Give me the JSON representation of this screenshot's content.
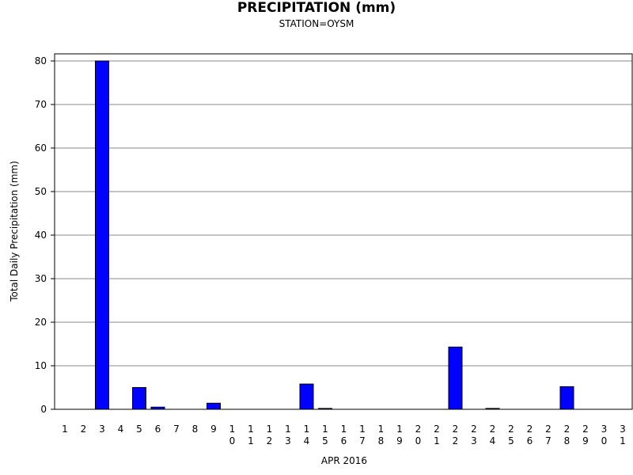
{
  "chart_data": {
    "type": "bar",
    "title": "PRECIPITATION (mm)",
    "subtitle": "STATION=OYSM",
    "xlabel": "APR 2016",
    "ylabel": "Total Daily Precipitation (mm)",
    "ylim": [
      0,
      80
    ],
    "yticks": [
      0,
      10,
      20,
      30,
      40,
      50,
      60,
      70,
      80
    ],
    "grid": true,
    "bar_color": "#0000ff",
    "categories": [
      "1",
      "2",
      "3",
      "4",
      "5",
      "6",
      "7",
      "8",
      "9",
      "10",
      "11",
      "12",
      "13",
      "14",
      "15",
      "16",
      "17",
      "18",
      "19",
      "20",
      "21",
      "22",
      "23",
      "24",
      "25",
      "26",
      "27",
      "28",
      "29",
      "30",
      "31"
    ],
    "values": [
      0,
      0,
      80,
      0,
      5.0,
      0.5,
      0,
      0,
      1.4,
      0,
      0,
      0,
      0,
      5.8,
      0.2,
      0,
      0,
      0,
      0,
      0,
      0,
      14.3,
      0,
      0.2,
      0,
      0,
      0,
      5.2,
      0,
      0,
      0
    ]
  }
}
